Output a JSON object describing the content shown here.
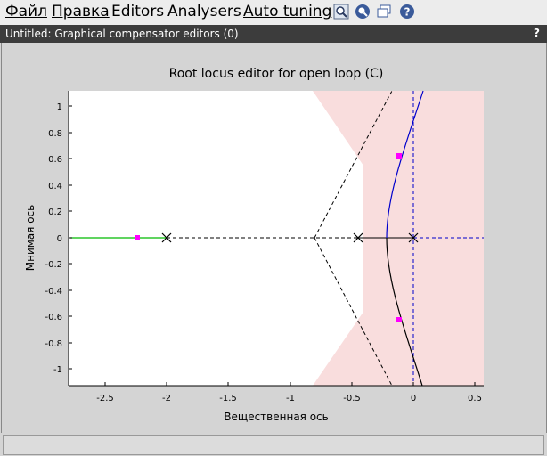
{
  "menu": {
    "file": "Файл",
    "edit": "Правка",
    "editors": "Editors",
    "analysers": "Analysers",
    "auto_tuning": "Auto tuning"
  },
  "toolbar_icons": [
    "zoom-in-icon",
    "zoom-search-icon",
    "windows-icon",
    "help-icon"
  ],
  "window": {
    "title": "Untitled: Graphical compensator editors (0)",
    "help": "?"
  },
  "plot": {
    "title": "Root locus editor for open loop (C)",
    "xlabel": "Вещественная ось",
    "ylabel": "Мнимая ось",
    "xticks": [
      "-2.5",
      "-2",
      "-1.5",
      "-1",
      "-0.5",
      "0",
      "0.5"
    ],
    "yticks": [
      "1",
      "0.8",
      "0.6",
      "0.4",
      "0.2",
      "0",
      "-0.2",
      "-0.4",
      "-0.6",
      "-0.8",
      "-1"
    ]
  },
  "chart_data": {
    "type": "scatter",
    "title": "Root locus editor for open loop (C)",
    "xlabel": "Вещественная ось",
    "ylabel": "Мнимая ось",
    "xlim": [
      -2.8,
      0.57
    ],
    "ylim": [
      -1.12,
      1.12
    ],
    "poles": [
      [
        -2,
        0
      ],
      [
        -0.45,
        0
      ],
      [
        0,
        0
      ]
    ],
    "closed_loop_poles": [
      [
        -2.25,
        0
      ],
      [
        -0.11,
        0.63
      ],
      [
        -0.11,
        -0.63
      ]
    ],
    "asymptote_center": -0.82,
    "colors": {
      "shade": "#f9dddd",
      "locus_blue": "#0000cc",
      "locus_green": "#00bb00",
      "marker": "#ff00ff"
    }
  },
  "status": ""
}
